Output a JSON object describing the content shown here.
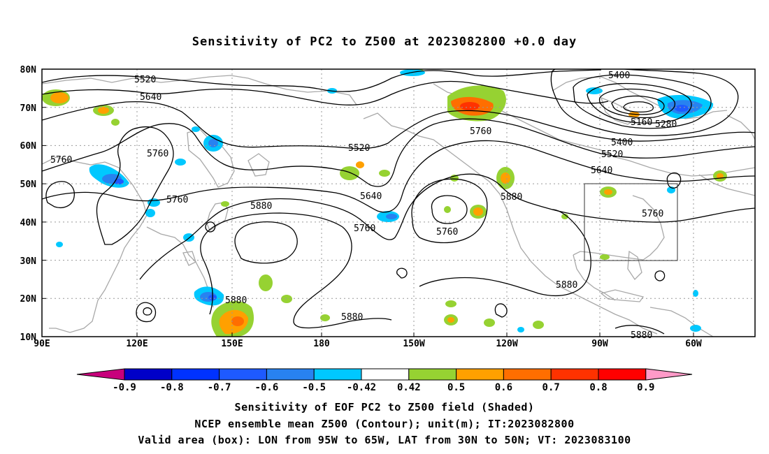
{
  "title": "Sensitivity of PC2 to Z500 at 2023082800 +0.0 day",
  "lat_labels": [
    "80N",
    "70N",
    "60N",
    "50N",
    "40N",
    "30N",
    "20N",
    "10N"
  ],
  "lon_labels": [
    "90E",
    "120E",
    "150E",
    "180",
    "150W",
    "120W",
    "90W",
    "60W"
  ],
  "colorbar": {
    "labels": [
      "-0.9",
      "-0.8",
      "-0.7",
      "-0.6",
      "-0.5",
      "-0.42",
      "0.42",
      "0.5",
      "0.6",
      "0.7",
      "0.8",
      "0.9"
    ],
    "colors": [
      "#c8007c",
      "#0000c8",
      "#0032ff",
      "#1e5aff",
      "#2882f0",
      "#00c8ff",
      "#ffffff",
      "#96d232",
      "#ffa000",
      "#ff6e00",
      "#ff3200",
      "#ff0000",
      "#ff9ac8"
    ]
  },
  "contours": {
    "labels": [
      "5520",
      "5640",
      "5760",
      "5760",
      "5760",
      "5880",
      "5880",
      "5880",
      "5520",
      "5640",
      "5760",
      "5760",
      "5760",
      "5880",
      "5880",
      "5400",
      "5160",
      "5280",
      "5400",
      "5520",
      "5640",
      "5760",
      "5880"
    ]
  },
  "valid_box": {
    "lon": [
      -95,
      -65
    ],
    "lat": [
      30,
      50
    ]
  },
  "captions": [
    "Sensitivity of EOF PC2 to Z500 field (Shaded)",
    "NCEP ensemble mean Z500 (Contour); unit(m); IT:2023082800",
    "Valid area (box): LON from 95W to 65W, LAT from 30N to 50N; VT: 2023083100"
  ]
}
